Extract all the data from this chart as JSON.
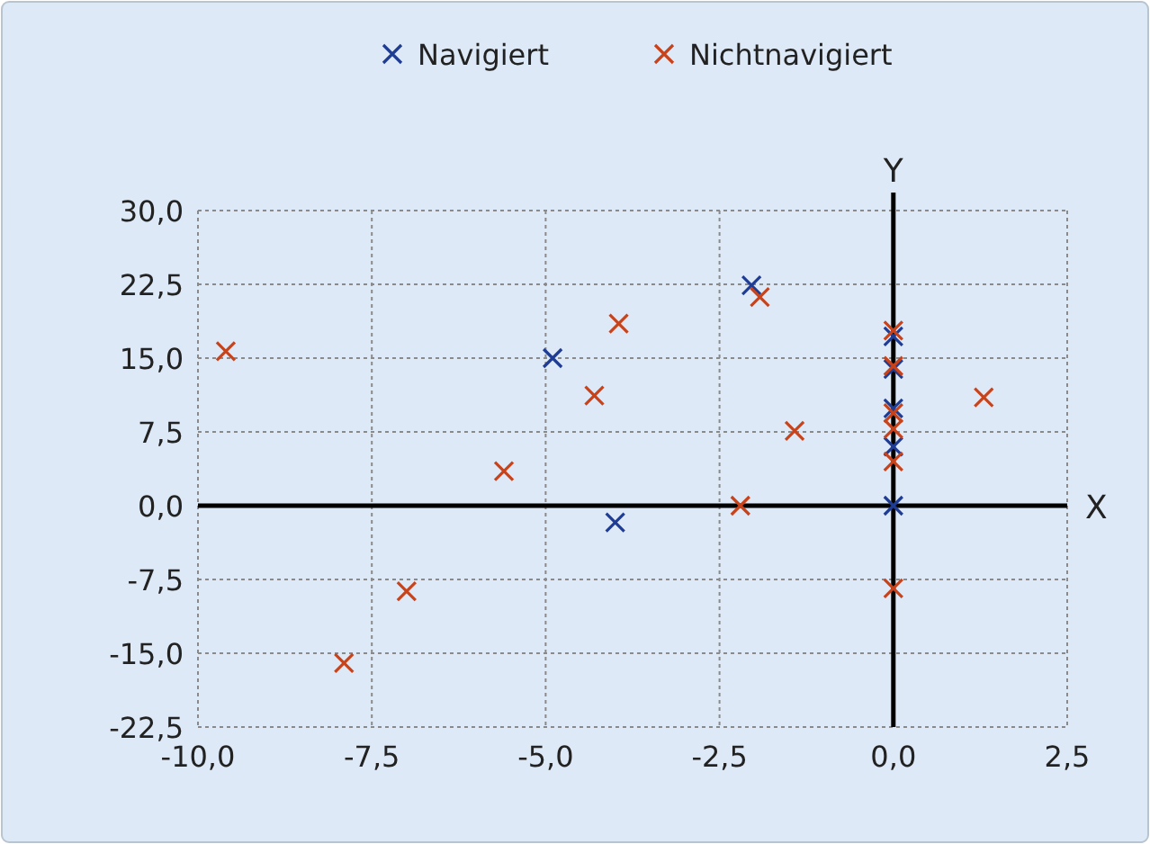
{
  "chart_data": {
    "type": "scatter",
    "xlabel": "X",
    "ylabel": "Y",
    "marker": "cross",
    "grid": true,
    "legend": "top",
    "xlim": [
      -10,
      2.5
    ],
    "ylim": [
      -22.5,
      30
    ],
    "xticks": [
      {
        "value": -10,
        "label": "-10,0"
      },
      {
        "value": -7.5,
        "label": "-7,5"
      },
      {
        "value": -5,
        "label": "-5,0"
      },
      {
        "value": -2.5,
        "label": "-2,5"
      },
      {
        "value": 0,
        "label": "0,0"
      },
      {
        "value": 2.5,
        "label": "2,5"
      }
    ],
    "yticks": [
      {
        "value": -22.5,
        "label": "-22,5"
      },
      {
        "value": -15,
        "label": "-15,0"
      },
      {
        "value": -7.5,
        "label": "-7,5"
      },
      {
        "value": 0,
        "label": "0,0"
      },
      {
        "value": 7.5,
        "label": "7,5"
      },
      {
        "value": 15,
        "label": "15,0"
      },
      {
        "value": 22.5,
        "label": "22,5"
      },
      {
        "value": 30,
        "label": "30,0"
      }
    ],
    "series": [
      {
        "name": "Navigiert",
        "color": "#1f3c94",
        "x": [
          -4.9,
          -4.0,
          -2.04,
          0,
          0,
          0,
          0,
          0
        ],
        "values": [
          15.0,
          -1.7,
          22.4,
          17.2,
          13.9,
          9.9,
          6.0,
          0
        ]
      },
      {
        "name": "Nichtnavigiert",
        "color": "#c8421a",
        "x": [
          -9.6,
          -7.9,
          -7.0,
          -5.6,
          -4.3,
          -3.95,
          -2.2,
          -1.92,
          -1.42,
          1.3,
          0,
          0,
          0,
          0,
          0,
          0
        ],
        "values": [
          15.7,
          -16.0,
          -8.7,
          3.5,
          11.2,
          18.5,
          0,
          21.2,
          7.6,
          11.0,
          17.8,
          14.2,
          9.4,
          7.8,
          4.5,
          -8.4
        ]
      }
    ]
  }
}
